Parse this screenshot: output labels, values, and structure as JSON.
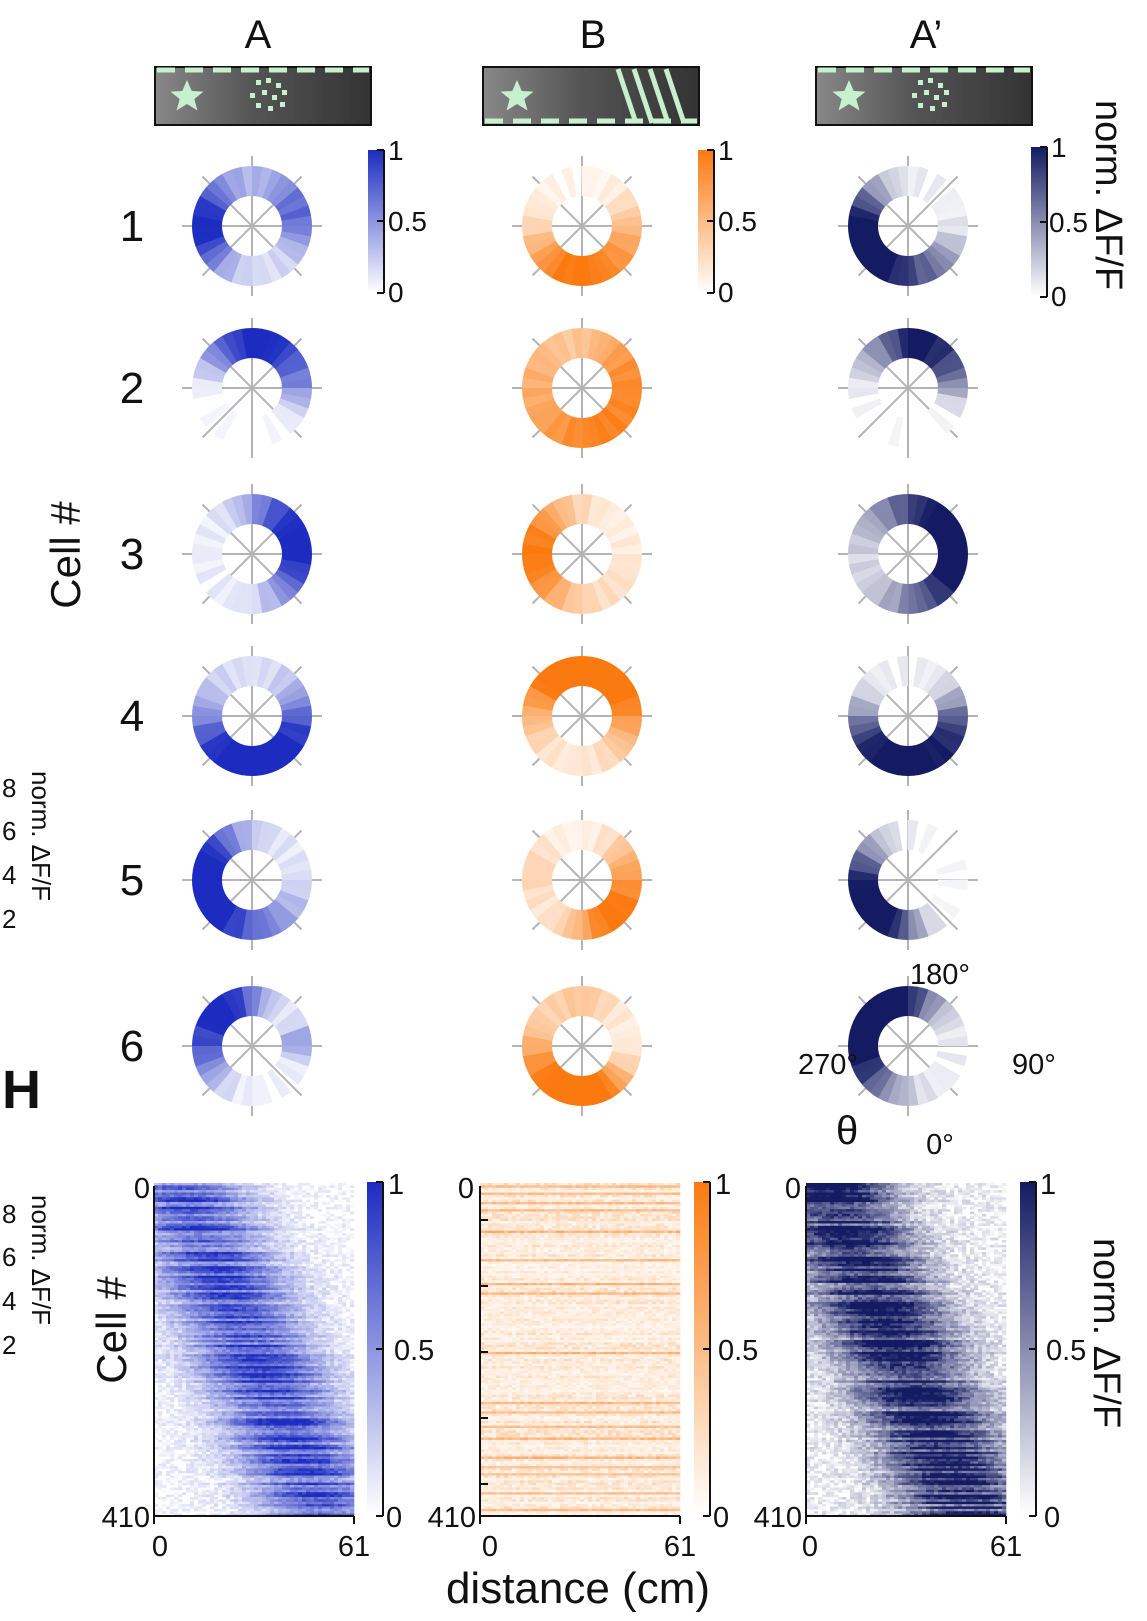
{
  "figure": {
    "columns": [
      {
        "label": "A",
        "colormap": "blue"
      },
      {
        "label": "B",
        "colormap": "orange"
      },
      {
        "label": "A’",
        "colormap": "navy"
      }
    ],
    "colors": {
      "blue": "#1c2cc0",
      "orange": "#fb7a10",
      "navy": "#141b62",
      "track": "#3d3d3d",
      "track_mark": "#c7f0cf",
      "guide": "#b4b4b4"
    },
    "panel_letter": "H",
    "cell_axis_label": "Cell #",
    "colorbar_label": "norm. ΔF/F",
    "small_axis_label": "norm. ΔF/F",
    "small_axis_ticks": [
      "8",
      "6",
      "4",
      "2"
    ],
    "polar_cell_labels": [
      "1",
      "2",
      "3",
      "4",
      "5",
      "6"
    ],
    "angle_labels": {
      "top": "180°",
      "right": "90°",
      "left": "270°",
      "bottom": "0°"
    },
    "theta_symbol": "θ",
    "xlabel": "distance (cm)"
  },
  "chart_data": [
    {
      "type": "polar-heatmap",
      "description_note": "",
      "angle_convention": {
        "0deg": "bottom",
        "90deg": "right",
        "180deg": "top",
        "270deg": "left"
      },
      "colorbar": {
        "min": 0,
        "max": 1,
        "ticks": [
          "0",
          "0.5",
          "1"
        ]
      },
      "angle_bins": 36,
      "cells": [
        {
          "cell": "1",
          "condition": "A",
          "peaks": [
            {
              "angle": 270,
              "amp": 0.9,
              "width": 38
            },
            {
              "angle": 105,
              "amp": 0.45,
              "width": 30
            },
            {
              "angle": 150,
              "amp": 0.18,
              "width": 60
            }
          ],
          "baseline": 0.12
        },
        {
          "cell": "1",
          "condition": "B",
          "peaks": [
            {
              "angle": 350,
              "amp": 0.95,
              "width": 50
            },
            {
              "angle": 75,
              "amp": 0.35,
              "width": 35
            }
          ],
          "baseline": 0.06
        },
        {
          "cell": "1",
          "condition": "A’",
          "peaks": [
            {
              "angle": 275,
              "amp": 0.95,
              "width": 40
            },
            {
              "angle": 335,
              "amp": 0.6,
              "width": 35
            },
            {
              "angle": 35,
              "amp": 0.4,
              "width": 30
            }
          ],
          "baseline": 0.05
        },
        {
          "cell": "2",
          "condition": "A",
          "peaks": [
            {
              "angle": 160,
              "amp": 0.95,
              "width": 35
            },
            {
              "angle": 215,
              "amp": 0.45,
              "width": 30
            },
            {
              "angle": 95,
              "amp": 0.4,
              "width": 25
            }
          ],
          "baseline": 0.0
        },
        {
          "cell": "2",
          "condition": "B",
          "peaks": [
            {
              "angle": 20,
              "amp": 0.75,
              "width": 60
            },
            {
              "angle": 250,
              "amp": 0.35,
              "width": 50
            },
            {
              "angle": 120,
              "amp": 0.45,
              "width": 40
            }
          ],
          "baseline": 0.15
        },
        {
          "cell": "2",
          "condition": "A’",
          "peaks": [
            {
              "angle": 165,
              "amp": 0.95,
              "width": 28
            },
            {
              "angle": 110,
              "amp": 0.55,
              "width": 25
            },
            {
              "angle": 220,
              "amp": 0.35,
              "width": 30
            }
          ],
          "baseline": 0.0
        },
        {
          "cell": "3",
          "condition": "A",
          "peaks": [
            {
              "angle": 95,
              "amp": 0.95,
              "width": 45
            },
            {
              "angle": 160,
              "amp": 0.3,
              "width": 30
            }
          ],
          "baseline": 0.08
        },
        {
          "cell": "3",
          "condition": "B",
          "peaks": [
            {
              "angle": 270,
              "amp": 0.95,
              "width": 55
            },
            {
              "angle": 60,
              "amp": 0.15,
              "width": 40
            }
          ],
          "baseline": 0.05
        },
        {
          "cell": "3",
          "condition": "A’",
          "peaks": [
            {
              "angle": 95,
              "amp": 0.95,
              "width": 45
            },
            {
              "angle": 170,
              "amp": 0.5,
              "width": 50
            },
            {
              "angle": 15,
              "amp": 0.35,
              "width": 40
            }
          ],
          "baseline": 0.12
        },
        {
          "cell": "4",
          "condition": "A",
          "peaks": [
            {
              "angle": 340,
              "amp": 0.95,
              "width": 55
            },
            {
              "angle": 70,
              "amp": 0.55,
              "width": 40
            }
          ],
          "baseline": 0.12
        },
        {
          "cell": "4",
          "condition": "B",
          "peaks": [
            {
              "angle": 130,
              "amp": 0.9,
              "width": 55
            },
            {
              "angle": 200,
              "amp": 0.65,
              "width": 40
            },
            {
              "angle": 260,
              "amp": 0.3,
              "width": 40
            }
          ],
          "baseline": 0.1
        },
        {
          "cell": "4",
          "condition": "A’",
          "peaks": [
            {
              "angle": 10,
              "amp": 0.95,
              "width": 45
            },
            {
              "angle": 300,
              "amp": 0.55,
              "width": 35
            },
            {
              "angle": 80,
              "amp": 0.45,
              "width": 30
            }
          ],
          "baseline": 0.05
        },
        {
          "cell": "5",
          "condition": "A",
          "peaks": [
            {
              "angle": 295,
              "amp": 0.9,
              "width": 45
            },
            {
              "angle": 240,
              "amp": 0.5,
              "width": 40
            },
            {
              "angle": 20,
              "amp": 0.35,
              "width": 40
            }
          ],
          "baseline": 0.1
        },
        {
          "cell": "5",
          "condition": "B",
          "peaks": [
            {
              "angle": 40,
              "amp": 0.95,
              "width": 40
            },
            {
              "angle": 110,
              "amp": 0.35,
              "width": 30
            },
            {
              "angle": 260,
              "amp": 0.25,
              "width": 30
            }
          ],
          "baseline": 0.06
        },
        {
          "cell": "5",
          "condition": "A’",
          "peaks": [
            {
              "angle": 285,
              "amp": 0.95,
              "width": 45
            },
            {
              "angle": 335,
              "amp": 0.55,
              "width": 30
            }
          ],
          "baseline": 0.0
        },
        {
          "cell": "6",
          "condition": "A",
          "peaks": [
            {
              "angle": 215,
              "amp": 0.95,
              "width": 35
            },
            {
              "angle": 280,
              "amp": 0.5,
              "width": 30
            },
            {
              "angle": 95,
              "amp": 0.4,
              "width": 15
            }
          ],
          "baseline": 0.05
        },
        {
          "cell": "6",
          "condition": "B",
          "peaks": [
            {
              "angle": 320,
              "amp": 0.85,
              "width": 50
            },
            {
              "angle": 20,
              "amp": 0.6,
              "width": 30
            },
            {
              "angle": 180,
              "amp": 0.3,
              "width": 30
            }
          ],
          "baseline": 0.1
        },
        {
          "cell": "6",
          "condition": "A’",
          "peaks": [
            {
              "angle": 245,
              "amp": 0.95,
              "width": 50
            },
            {
              "angle": 200,
              "amp": 0.6,
              "width": 40
            },
            {
              "angle": 310,
              "amp": 0.3,
              "width": 40
            }
          ],
          "baseline": 0.05
        }
      ]
    },
    {
      "type": "heatmap",
      "panel": "H",
      "x_range": [
        0,
        61
      ],
      "x_ticks": [
        "0",
        "61"
      ],
      "y_range": [
        0,
        410
      ],
      "y_ticks": [
        "0",
        "410"
      ],
      "colorbar": {
        "min": 0,
        "max": 1,
        "ticks": [
          "0",
          "0.5",
          "1"
        ]
      },
      "rows": 410,
      "panels": [
        {
          "condition": "A",
          "pattern": "diagonal",
          "start_cm": 8,
          "end_cm": 52,
          "intensity": 0.75,
          "noise": 0.35
        },
        {
          "condition": "B",
          "pattern": "diffuse",
          "start_cm": 0,
          "end_cm": 61,
          "intensity": 0.18,
          "noise": 0.35
        },
        {
          "condition": "A’",
          "pattern": "diagonal",
          "start_cm": 6,
          "end_cm": 50,
          "intensity": 0.9,
          "noise": 0.5
        }
      ]
    }
  ]
}
